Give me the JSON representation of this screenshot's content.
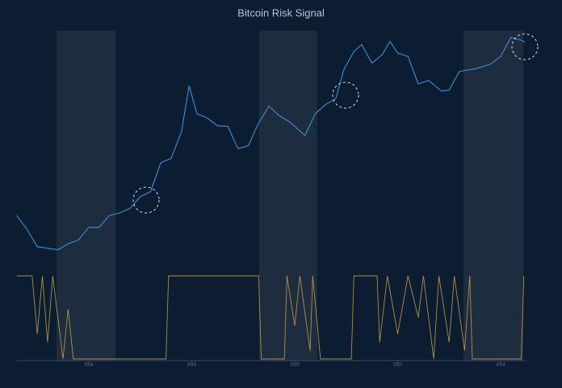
{
  "chart_data": {
    "type": "line",
    "title": "Bitcoin Risk Signal",
    "log_scale": true,
    "xlim": [
      2014.59,
      2024.47
    ],
    "xticks": [
      2016,
      2018,
      2020,
      2022,
      2024
    ],
    "ylim": [
      100,
      100000
    ],
    "series": [
      {
        "color": "#3b8fd6",
        "x": [
          2014.6,
          2014.8,
          2015.0,
          2015.2,
          2015.4,
          2015.6,
          2015.8,
          2016.0,
          2016.2,
          2016.4,
          2016.6,
          2016.8,
          2017.0,
          2017.2,
          2017.4,
          2017.6,
          2017.8,
          2017.95,
          2018.1,
          2018.3,
          2018.5,
          2018.7,
          2018.9,
          2019.1,
          2019.3,
          2019.5,
          2019.7,
          2019.9,
          2020.2,
          2020.4,
          2020.6,
          2020.8,
          2020.95,
          2021.15,
          2021.3,
          2021.5,
          2021.7,
          2021.85,
          2022.0,
          2022.2,
          2022.4,
          2022.6,
          2022.85,
          2023.0,
          2023.2,
          2023.5,
          2023.8,
          2024.0,
          2024.2,
          2024.4,
          2024.47
        ],
        "values": [
          580,
          400,
          250,
          240,
          230,
          270,
          300,
          420,
          420,
          580,
          620,
          700,
          960,
          1100,
          2400,
          2700,
          5500,
          19000,
          9000,
          8000,
          6500,
          6400,
          3500,
          3800,
          7000,
          11000,
          8500,
          7200,
          5000,
          9000,
          11500,
          13500,
          29000,
          48000,
          58000,
          35000,
          44000,
          63000,
          46000,
          42000,
          20000,
          22000,
          16500,
          17000,
          28000,
          30000,
          34000,
          42000,
          70000,
          65000,
          62000
        ]
      }
    ],
    "signal": {
      "color": "#c9a24a",
      "ylim": [
        0,
        1
      ],
      "x": [
        2014.6,
        2014.9,
        2015.0,
        2015.1,
        2015.2,
        2015.3,
        2015.5,
        2015.6,
        2015.7,
        2017.5,
        2017.55,
        2019.3,
        2019.35,
        2019.8,
        2019.85,
        2020.0,
        2020.1,
        2020.3,
        2020.35,
        2020.5,
        2021.1,
        2021.15,
        2021.6,
        2021.65,
        2021.8,
        2022.0,
        2022.2,
        2022.4,
        2022.5,
        2022.7,
        2022.8,
        2023.0,
        2023.1,
        2023.3,
        2023.4,
        2023.45,
        2024.4,
        2024.45
      ],
      "values": [
        1,
        1,
        0.3,
        1,
        0.2,
        1,
        0,
        0.6,
        0,
        0,
        1,
        1,
        0,
        0,
        1,
        0.4,
        1,
        0.1,
        1,
        0,
        0,
        1,
        1,
        0.2,
        1,
        0.3,
        1,
        0.5,
        1,
        0,
        1,
        0.2,
        1,
        0.1,
        1,
        0,
        0,
        1
      ]
    }
  }
}
